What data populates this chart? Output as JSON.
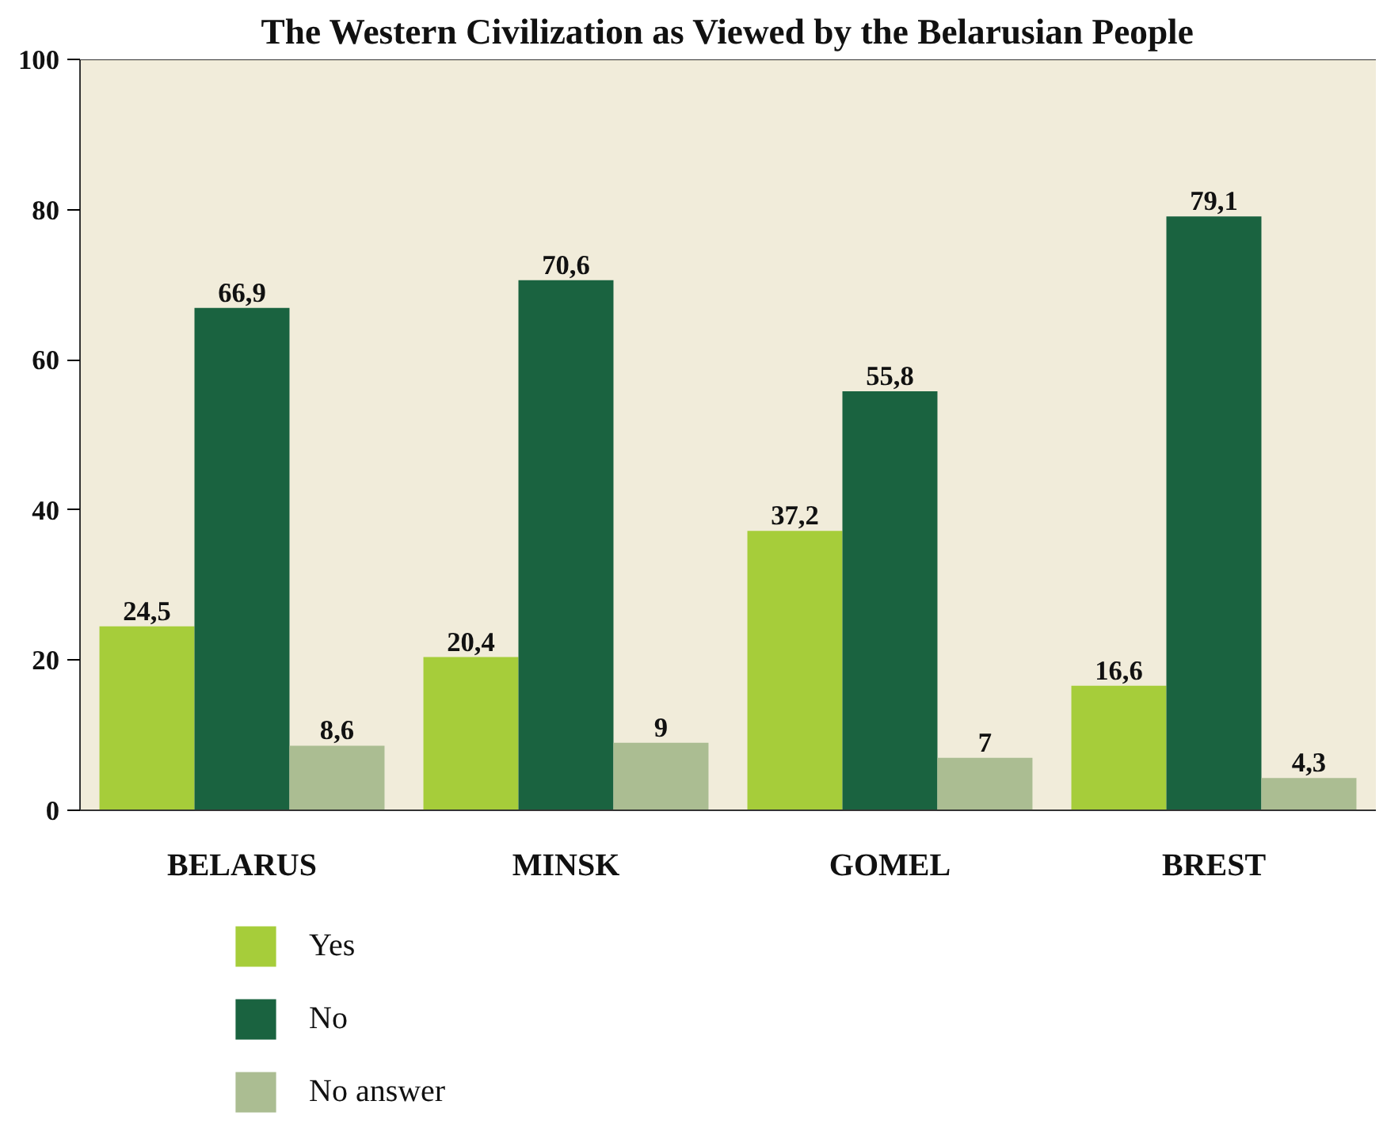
{
  "chart_data": {
    "type": "bar",
    "title": "The Western Civilization as Viewed by the Belarusian People",
    "categories": [
      "BELARUS",
      "MINSK",
      "GOMEL",
      "BREST"
    ],
    "series": [
      {
        "name": "Yes",
        "color": "#a6cd3a",
        "values": [
          24.5,
          20.4,
          37.2,
          16.6
        ],
        "value_labels": [
          "24,5",
          "20,4",
          "37,2",
          "16,6"
        ]
      },
      {
        "name": "No",
        "color": "#1a6340",
        "values": [
          66.9,
          70.6,
          55.8,
          79.1
        ],
        "value_labels": [
          "66,9",
          "70,6",
          "55,8",
          "79,1"
        ]
      },
      {
        "name": "No answer",
        "color": "#abbd92",
        "values": [
          8.6,
          9,
          7,
          4.3
        ],
        "value_labels": [
          "8,6",
          "9",
          "7",
          "4,3"
        ]
      }
    ],
    "ylim": [
      0,
      100
    ],
    "yticks": [
      0,
      20,
      40,
      60,
      80,
      100
    ],
    "grid": false,
    "legend": "bottom left"
  }
}
